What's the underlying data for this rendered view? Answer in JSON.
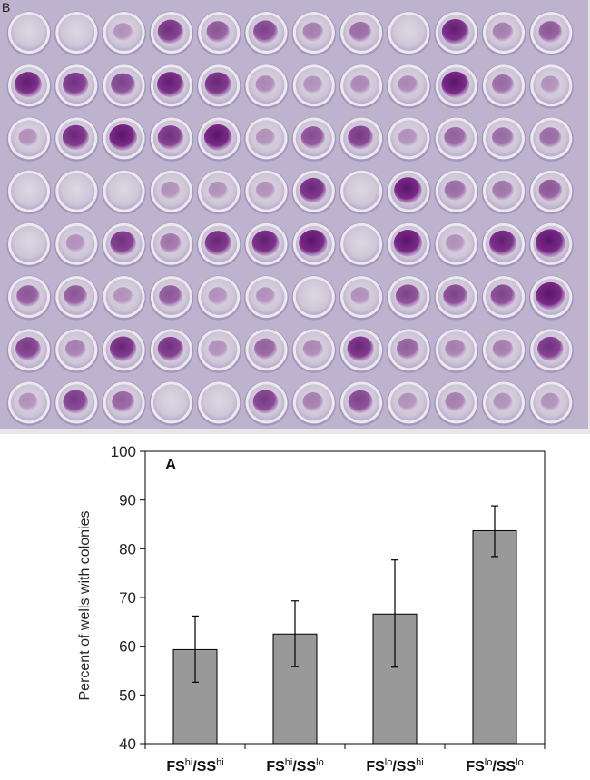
{
  "photo": {
    "panel_label": "B",
    "rows": 8,
    "cols": 12,
    "colors": {
      "plate": "#bdb3cf",
      "well_rim": "#ebe8ef",
      "well_floor": "#d5cfdb",
      "stain": "#6b1f78",
      "frame": "#e9e6ea"
    },
    "stain_intensity": [
      [
        0.05,
        0.05,
        0.1,
        0.6,
        0.4,
        0.5,
        0.2,
        0.3,
        0.05,
        0.7,
        0.2,
        0.4
      ],
      [
        0.7,
        0.6,
        0.5,
        0.7,
        0.65,
        0.15,
        0.1,
        0.15,
        0.15,
        0.75,
        0.3,
        0.1
      ],
      [
        0.1,
        0.65,
        0.75,
        0.6,
        0.75,
        0.1,
        0.45,
        0.55,
        0.1,
        0.35,
        0.3,
        0.3
      ],
      [
        0.05,
        0.05,
        0.05,
        0.1,
        0.1,
        0.1,
        0.65,
        0.05,
        0.75,
        0.3,
        0.25,
        0.4
      ],
      [
        0.05,
        0.1,
        0.6,
        0.25,
        0.65,
        0.7,
        0.8,
        0.05,
        0.8,
        0.1,
        0.7,
        0.9
      ],
      [
        0.4,
        0.4,
        0.1,
        0.4,
        0.1,
        0.1,
        0.05,
        0.1,
        0.5,
        0.5,
        0.5,
        0.85
      ],
      [
        0.55,
        0.2,
        0.65,
        0.6,
        0.1,
        0.35,
        0.15,
        0.65,
        0.35,
        0.2,
        0.2,
        0.6
      ],
      [
        0.1,
        0.55,
        0.35,
        0.05,
        0.05,
        0.55,
        0.2,
        0.5,
        0.1,
        0.2,
        0.1,
        0.1
      ]
    ]
  },
  "chart_data": {
    "type": "bar",
    "panel_label": "A",
    "ylabel": "Percent of wells with colonies",
    "ylim": [
      40,
      100
    ],
    "yticks": [
      "40",
      "50",
      "60",
      "70",
      "80",
      "90",
      "100"
    ],
    "categories": [
      {
        "fs": "FS",
        "fs_sup": "hi",
        "ss": "/SS",
        "ss_sup": "hi"
      },
      {
        "fs": "FS",
        "fs_sup": "hi",
        "ss": "/SS",
        "ss_sup": "lo"
      },
      {
        "fs": "FS",
        "fs_sup": "lo",
        "ss": "/SS",
        "ss_sup": "hi"
      },
      {
        "fs": "FS",
        "fs_sup": "lo",
        "ss": "/SS",
        "ss_sup": "lo"
      }
    ],
    "values": [
      59.3,
      62.5,
      66.6,
      83.7
    ],
    "error_low": [
      52.6,
      55.8,
      55.7,
      78.4
    ],
    "error_high": [
      66.2,
      69.3,
      77.7,
      88.8
    ],
    "grid": false,
    "colors": {
      "bar": "#999999",
      "axis": "#000000"
    }
  }
}
